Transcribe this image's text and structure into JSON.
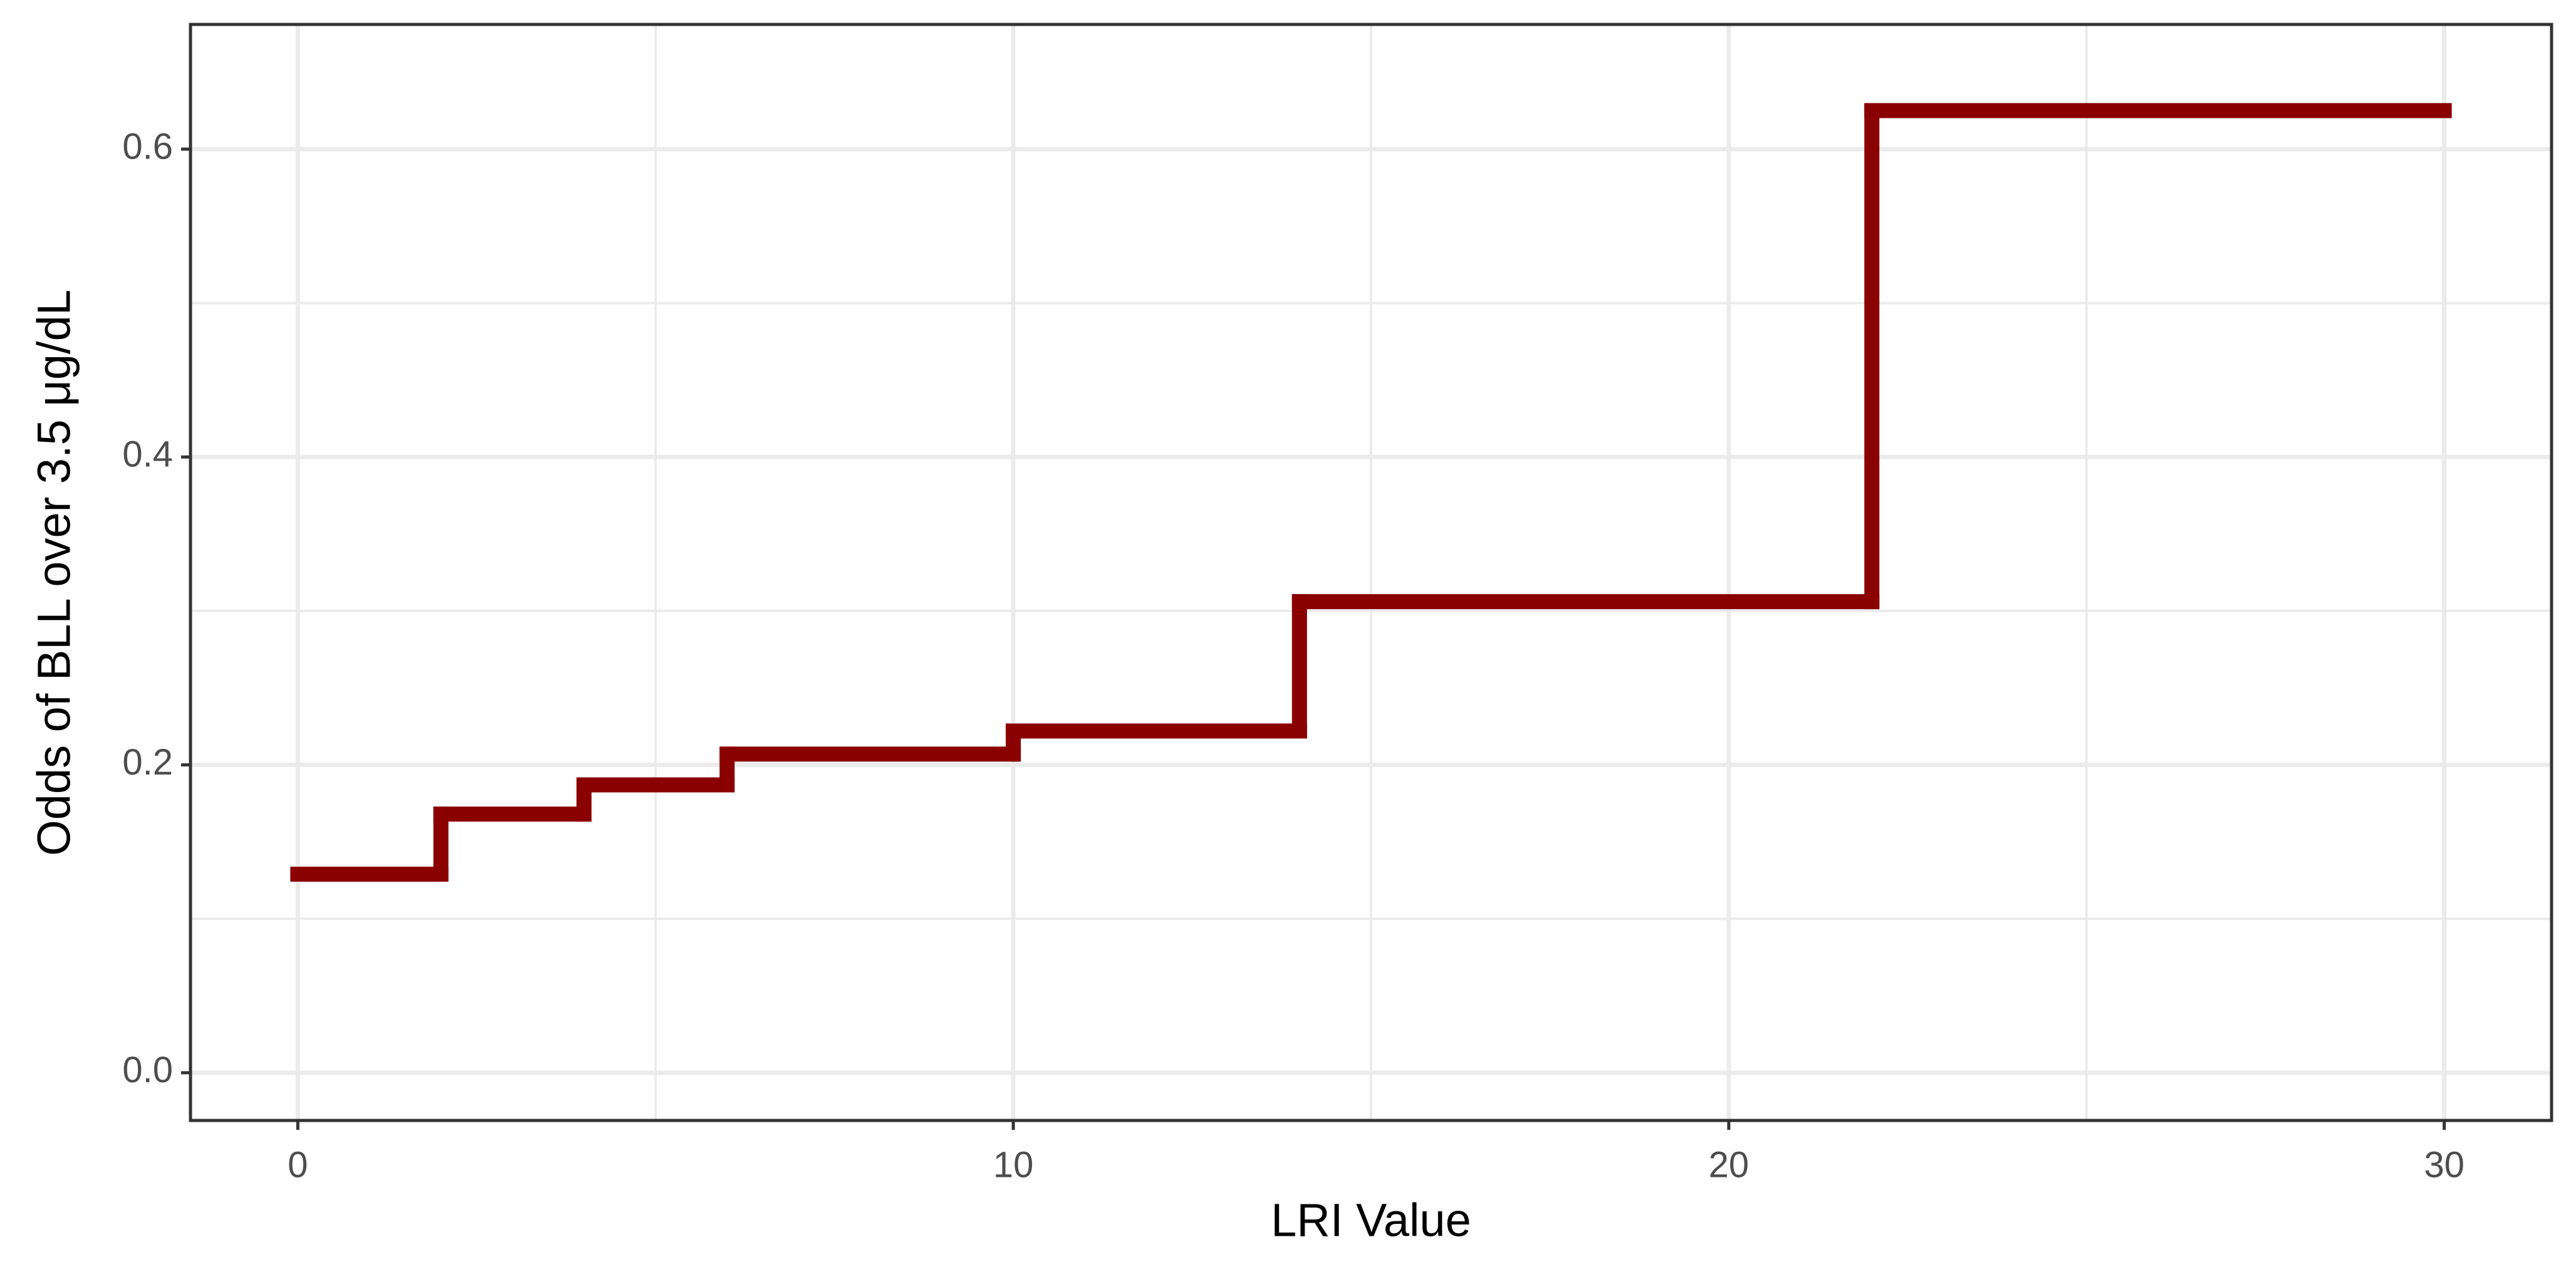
{
  "chart_data": {
    "type": "step",
    "x_label": "LRI Value",
    "y_label": "Odds of BLL over 3.5 μg/dL",
    "x": [
      0,
      2,
      4,
      6,
      10,
      14,
      22,
      30
    ],
    "values": [
      0.129,
      0.168,
      0.187,
      0.207,
      0.222,
      0.306,
      0.625,
      0.625
    ],
    "color": "#8b0000",
    "xlim": [
      -1.5,
      31.5
    ],
    "xticks": [
      0,
      10,
      20,
      30
    ],
    "x_minor_ticks": [
      5,
      15,
      25
    ],
    "ylim": [
      -0.031,
      0.681
    ],
    "yticks": [
      {
        "value": 0,
        "label": "0.0"
      },
      0.2,
      0.4,
      0.6
    ],
    "y_minor_ticks": [
      0.1,
      0.3,
      0.5
    ],
    "grid": true
  }
}
